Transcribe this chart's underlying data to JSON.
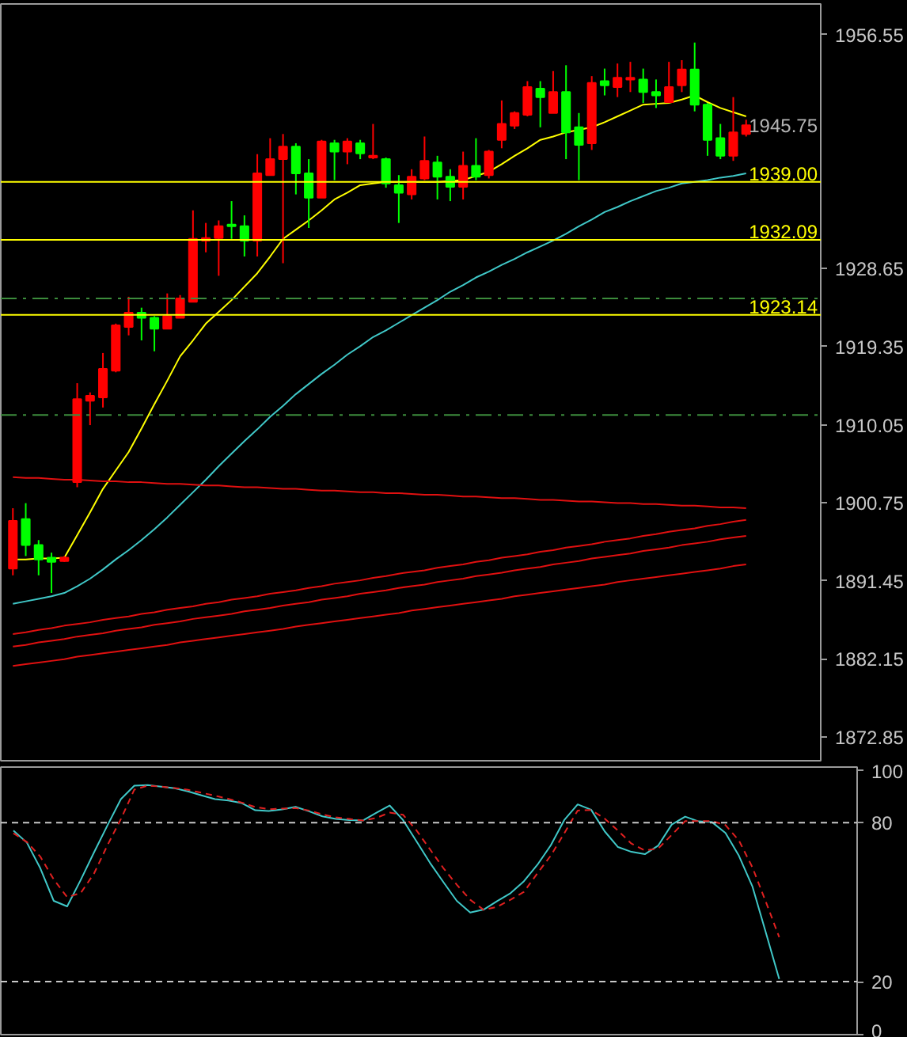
{
  "chart_data": [
    {
      "type": "candlestick",
      "categories": [
        null,
        null,
        null,
        null,
        null,
        null,
        null,
        null,
        null,
        null,
        null,
        null,
        null,
        null,
        null,
        null,
        null,
        null,
        null,
        null,
        null,
        null,
        null,
        null,
        null,
        null,
        null,
        null,
        null,
        null,
        null,
        null,
        null,
        null,
        null,
        null,
        null,
        null,
        null,
        null,
        null,
        null,
        null,
        null,
        null,
        null,
        null,
        null,
        null,
        null,
        null,
        null,
        null,
        null,
        null,
        null,
        null,
        null
      ],
      "ohlc": [
        [
          1892.9,
          1900.1,
          1892.1,
          1898.6
        ],
        [
          1898.8,
          1900.7,
          1894.4,
          1895.7
        ],
        [
          1895.7,
          1896.3,
          1892.1,
          1894.0
        ],
        [
          1894.2,
          1894.8,
          1890.0,
          1893.7
        ],
        [
          1893.8,
          1894.4,
          1893.7,
          1894.2
        ],
        [
          1903.2,
          1915.0,
          1902.6,
          1913.1
        ],
        [
          1912.9,
          1913.9,
          1910.0,
          1913.5
        ],
        [
          1913.3,
          1918.6,
          1912.1,
          1916.7
        ],
        [
          1916.5,
          1922.1,
          1916.3,
          1921.9
        ],
        [
          1921.7,
          1925.3,
          1920.7,
          1923.4
        ],
        [
          1923.4,
          1924.0,
          1920.1,
          1922.8
        ],
        [
          1922.8,
          1923.0,
          1918.8,
          1921.5
        ],
        [
          1921.5,
          1925.7,
          1921.5,
          1923.0
        ],
        [
          1922.8,
          1925.5,
          1922.8,
          1925.1
        ],
        [
          1924.7,
          1935.6,
          1924.7,
          1932.2
        ],
        [
          1932.0,
          1934.1,
          1930.6,
          1932.3
        ],
        [
          1932.3,
          1934.4,
          1927.8,
          1933.7
        ],
        [
          1933.9,
          1936.7,
          1932.2,
          1933.7
        ],
        [
          1933.7,
          1935.0,
          1930.1,
          1932.0
        ],
        [
          1932.0,
          1942.3,
          1930.1,
          1940.0
        ],
        [
          1939.8,
          1944.2,
          1939.8,
          1941.7
        ],
        [
          1941.7,
          1944.7,
          1929.3,
          1943.2
        ],
        [
          1943.2,
          1943.6,
          1937.5,
          1940.0
        ],
        [
          1940.0,
          1941.7,
          1933.5,
          1937.1
        ],
        [
          1937.1,
          1944.0,
          1937.1,
          1943.8
        ],
        [
          1943.6,
          1944.0,
          1939.2,
          1942.6
        ],
        [
          1942.6,
          1944.2,
          1941.1,
          1943.8
        ],
        [
          1943.6,
          1944.0,
          1941.7,
          1942.4
        ],
        [
          1941.9,
          1945.9,
          1941.7,
          1942.1
        ],
        [
          1941.7,
          1941.9,
          1938.3,
          1938.8
        ],
        [
          1938.6,
          1939.8,
          1934.1,
          1937.7
        ],
        [
          1937.5,
          1940.5,
          1936.9,
          1939.6
        ],
        [
          1939.4,
          1944.4,
          1939.2,
          1941.5
        ],
        [
          1941.3,
          1942.1,
          1936.9,
          1939.6
        ],
        [
          1939.6,
          1940.5,
          1936.7,
          1938.4
        ],
        [
          1938.4,
          1942.6,
          1936.9,
          1940.9
        ],
        [
          1940.9,
          1944.2,
          1939.2,
          1939.6
        ],
        [
          1939.8,
          1942.8,
          1939.4,
          1942.6
        ],
        [
          1944.0,
          1948.7,
          1943.0,
          1945.9
        ],
        [
          1945.7,
          1947.4,
          1945.3,
          1947.2
        ],
        [
          1947.0,
          1951.0,
          1946.8,
          1950.3
        ],
        [
          1950.1,
          1951.0,
          1945.5,
          1949.1
        ],
        [
          1947.2,
          1952.2,
          1947.2,
          1949.7
        ],
        [
          1949.7,
          1952.9,
          1941.7,
          1944.9
        ],
        [
          1945.5,
          1947.2,
          1939.2,
          1943.4
        ],
        [
          1943.6,
          1951.6,
          1942.8,
          1950.8
        ],
        [
          1951.0,
          1952.5,
          1949.3,
          1950.5
        ],
        [
          1950.3,
          1953.1,
          1949.1,
          1951.4
        ],
        [
          1951.2,
          1953.3,
          1949.7,
          1951.4
        ],
        [
          1951.2,
          1952.5,
          1948.4,
          1949.7
        ],
        [
          1949.7,
          1951.2,
          1947.8,
          1949.3
        ],
        [
          1948.5,
          1953.3,
          1948.4,
          1950.3
        ],
        [
          1950.5,
          1953.5,
          1949.7,
          1952.4
        ],
        [
          1952.4,
          1955.6,
          1947.4,
          1948.2
        ],
        [
          1948.2,
          1948.4,
          1942.1,
          1944.0
        ],
        [
          1944.2,
          1945.9,
          1941.7,
          1942.1
        ],
        [
          1942.1,
          1949.1,
          1941.5,
          1944.9
        ],
        [
          1944.7,
          1946.4,
          1944.4,
          1945.75
        ]
      ],
      "colors": [
        "#ff0000",
        "#00ff00",
        "#00ff00",
        "#00ff00",
        "#ff0000",
        "#ff0000",
        "#ff0000",
        "#ff0000",
        "#ff0000",
        "#ff0000",
        "#00ff00",
        "#00ff00",
        "#ff0000",
        "#ff0000",
        "#ff0000",
        "#ff0000",
        "#ff0000",
        "#00ff00",
        "#00ff00",
        "#ff0000",
        "#ff0000",
        "#ff0000",
        "#00ff00",
        "#00ff00",
        "#ff0000",
        "#00ff00",
        "#ff0000",
        "#00ff00",
        "#ff0000",
        "#00ff00",
        "#00ff00",
        "#ff0000",
        "#ff0000",
        "#00ff00",
        "#00ff00",
        "#ff0000",
        "#00ff00",
        "#ff0000",
        "#ff0000",
        "#ff0000",
        "#ff0000",
        "#00ff00",
        "#ff0000",
        "#00ff00",
        "#00ff00",
        "#ff0000",
        "#00ff00",
        "#ff0000",
        "#ff0000",
        "#00ff00",
        "#00ff00",
        "#ff0000",
        "#ff0000",
        "#00ff00",
        "#00ff00",
        "#00ff00",
        "#ff0000",
        "#ff0000"
      ],
      "series": [
        {
          "type": "line",
          "color": "#ffff00",
          "values": [
            1894.0,
            1894.0,
            1894.1,
            1894.1,
            1894.2,
            1896.9,
            1899.6,
            1902.4,
            1904.6,
            1906.8,
            1909.6,
            1912.5,
            1915.3,
            1918.2,
            1920.1,
            1922.1,
            1923.5,
            1924.9,
            1926.5,
            1928.1,
            1930.1,
            1932.2,
            1933.3,
            1934.4,
            1935.6,
            1936.9,
            1937.7,
            1938.6,
            1938.8,
            1939.0,
            1939.0,
            1939.0,
            1939.0,
            1939.0,
            1939.1,
            1939.2,
            1939.7,
            1940.2,
            1941.1,
            1942.1,
            1943.0,
            1944.0,
            1944.4,
            1944.9,
            1945.2,
            1945.5,
            1946.1,
            1946.8,
            1947.5,
            1948.2,
            1948.3,
            1948.4,
            1948.8,
            1949.3,
            1948.5,
            1947.8,
            1947.3,
            1946.8
          ]
        },
        {
          "type": "line",
          "color": "#40c8c8",
          "values": [
            1888.7,
            1889.0,
            1889.3,
            1889.6,
            1890.0,
            1890.8,
            1891.7,
            1892.8,
            1894.0,
            1895.1,
            1896.3,
            1897.6,
            1899.0,
            1900.5,
            1902.0,
            1903.5,
            1905.1,
            1906.6,
            1908.1,
            1909.5,
            1911.0,
            1912.3,
            1913.7,
            1914.9,
            1916.1,
            1917.2,
            1918.4,
            1919.4,
            1920.5,
            1921.3,
            1922.2,
            1923.1,
            1924.0,
            1924.9,
            1925.9,
            1926.7,
            1927.6,
            1928.3,
            1929.1,
            1929.8,
            1930.6,
            1931.3,
            1932.0,
            1932.8,
            1933.7,
            1934.5,
            1935.4,
            1936.0,
            1936.7,
            1937.3,
            1937.9,
            1938.3,
            1938.8,
            1939.0,
            1939.2,
            1939.5,
            1939.7,
            1940.0
          ]
        },
        {
          "type": "line",
          "color": "#e01010",
          "values": [
            1903.8,
            1903.7,
            1903.7,
            1903.6,
            1903.5,
            1903.5,
            1903.4,
            1903.3,
            1903.3,
            1903.2,
            1903.2,
            1903.1,
            1903.0,
            1903.0,
            1902.9,
            1902.8,
            1902.8,
            1902.7,
            1902.6,
            1902.6,
            1902.5,
            1902.4,
            1902.4,
            1902.3,
            1902.2,
            1902.2,
            1902.1,
            1902.0,
            1902.0,
            1901.9,
            1901.9,
            1901.8,
            1901.7,
            1901.7,
            1901.6,
            1901.5,
            1901.5,
            1901.4,
            1901.3,
            1901.3,
            1901.2,
            1901.1,
            1901.1,
            1901.0,
            1900.9,
            1900.9,
            1900.8,
            1900.7,
            1900.7,
            1900.6,
            1900.6,
            1900.5,
            1900.4,
            1900.4,
            1900.3,
            1900.2,
            1900.2,
            1900.1
          ]
        },
        {
          "type": "line",
          "color": "#e01010",
          "values": [
            1885.1,
            1885.3,
            1885.6,
            1885.8,
            1886.1,
            1886.3,
            1886.5,
            1886.8,
            1887.0,
            1887.2,
            1887.5,
            1887.7,
            1888.0,
            1888.2,
            1888.4,
            1888.7,
            1888.9,
            1889.2,
            1889.4,
            1889.6,
            1889.9,
            1890.1,
            1890.3,
            1890.6,
            1890.8,
            1891.1,
            1891.3,
            1891.5,
            1891.8,
            1892.0,
            1892.3,
            1892.5,
            1892.7,
            1893.0,
            1893.2,
            1893.4,
            1893.7,
            1893.9,
            1894.2,
            1894.4,
            1894.6,
            1894.9,
            1895.1,
            1895.4,
            1895.6,
            1895.8,
            1896.1,
            1896.3,
            1896.5,
            1896.8,
            1897.0,
            1897.3,
            1897.5,
            1897.7,
            1898.0,
            1898.2,
            1898.5,
            1898.7
          ]
        },
        {
          "type": "line",
          "color": "#e01010",
          "values": [
            1883.6,
            1883.8,
            1884.1,
            1884.3,
            1884.5,
            1884.8,
            1885.0,
            1885.2,
            1885.5,
            1885.7,
            1885.9,
            1886.2,
            1886.4,
            1886.6,
            1886.9,
            1887.1,
            1887.3,
            1887.5,
            1887.8,
            1888.0,
            1888.2,
            1888.5,
            1888.7,
            1888.9,
            1889.2,
            1889.4,
            1889.6,
            1889.9,
            1890.1,
            1890.3,
            1890.6,
            1890.8,
            1891.0,
            1891.3,
            1891.5,
            1891.7,
            1892.0,
            1892.2,
            1892.4,
            1892.7,
            1892.9,
            1893.1,
            1893.4,
            1893.6,
            1893.8,
            1894.1,
            1894.3,
            1894.5,
            1894.7,
            1895.0,
            1895.2,
            1895.4,
            1895.7,
            1895.9,
            1896.1,
            1896.4,
            1896.6,
            1896.8
          ]
        },
        {
          "type": "line",
          "color": "#e01010",
          "values": [
            1881.3,
            1881.5,
            1881.7,
            1881.9,
            1882.1,
            1882.4,
            1882.6,
            1882.8,
            1883.0,
            1883.2,
            1883.4,
            1883.6,
            1883.8,
            1884.1,
            1884.3,
            1884.5,
            1884.7,
            1884.9,
            1885.1,
            1885.3,
            1885.5,
            1885.7,
            1886.0,
            1886.2,
            1886.4,
            1886.6,
            1886.8,
            1887.0,
            1887.2,
            1887.4,
            1887.6,
            1887.9,
            1888.1,
            1888.3,
            1888.5,
            1888.7,
            1888.9,
            1889.1,
            1889.3,
            1889.6,
            1889.8,
            1890.0,
            1890.2,
            1890.4,
            1890.6,
            1890.8,
            1891.0,
            1891.3,
            1891.5,
            1891.7,
            1891.9,
            1892.1,
            1892.3,
            1892.5,
            1892.7,
            1892.9,
            1893.2,
            1893.4
          ]
        }
      ],
      "ylim": [
        1870.0,
        1960.2
      ],
      "yticks": [
        1872.85,
        1882.15,
        1891.45,
        1900.75,
        1910.05,
        1919.35,
        1928.65,
        1956.55
      ],
      "ref_lines": [
        {
          "axis": "y",
          "value": 1939.0,
          "label": "1939.00",
          "color": "#ffff00"
        },
        {
          "axis": "y",
          "value": 1932.09,
          "label": "1932.09",
          "color": "#ffff00"
        },
        {
          "axis": "y",
          "value": 1923.14,
          "label": "1923.14",
          "color": "#ffff00"
        },
        {
          "axis": "y",
          "value": 1925.1,
          "label": null,
          "color": "#3c8c3c",
          "line_style": "dashdot"
        },
        {
          "axis": "y",
          "value": 1911.2,
          "label": null,
          "color": "#3c8c3c",
          "line_style": "dashdot"
        }
      ],
      "annotations": [
        "1945.75"
      ]
    },
    {
      "type": "line",
      "categories": [
        null,
        null,
        null,
        null,
        null,
        null,
        null,
        null,
        null,
        null,
        null,
        null,
        null,
        null,
        null,
        null,
        null,
        null,
        null,
        null,
        null,
        null,
        null,
        null,
        null,
        null,
        null,
        null,
        null,
        null,
        null,
        null,
        null,
        null,
        null,
        null,
        null,
        null,
        null,
        null,
        null,
        null,
        null,
        null,
        null,
        null,
        null,
        null,
        null,
        null,
        null,
        null,
        null,
        null,
        null,
        null,
        null,
        null
      ],
      "series": [
        {
          "color": "#40c8c8",
          "values": [
            77.0,
            72.5,
            62.8,
            50.5,
            48.4,
            58.3,
            68.8,
            79.0,
            88.9,
            94.0,
            94.2,
            93.6,
            93.0,
            91.8,
            90.3,
            88.9,
            88.4,
            87.4,
            84.7,
            84.4,
            85.0,
            86.0,
            84.3,
            82.4,
            81.4,
            81.0,
            80.8,
            83.7,
            86.5,
            81.0,
            73.0,
            64.9,
            57.6,
            50.5,
            46.1,
            47.2,
            50.4,
            53.4,
            57.9,
            64.1,
            71.5,
            81.0,
            86.9,
            84.9,
            76.8,
            70.8,
            69.0,
            68.1,
            71.4,
            79.3,
            82.3,
            80.5,
            80.2,
            76.1,
            67.5,
            56.0,
            38.6,
            21.0
          ]
        },
        {
          "color": "#e02020",
          "line_style": "dashed",
          "values": [
            76.0,
            72.7,
            67.2,
            58.6,
            51.9,
            53.4,
            60.8,
            71.5,
            81.4,
            92.5,
            94.0,
            93.6,
            93.1,
            92.4,
            91.3,
            90.2,
            89.0,
            87.6,
            85.9,
            85.1,
            85.3,
            85.5,
            84.6,
            83.1,
            82.0,
            81.4,
            80.8,
            81.8,
            83.8,
            83.0,
            77.1,
            70.0,
            62.9,
            56.6,
            50.9,
            47.1,
            48.2,
            50.9,
            53.9,
            60.9,
            67.6,
            76.0,
            84.6,
            84.8,
            81.6,
            77.0,
            72.1,
            69.5,
            70.3,
            75.4,
            80.6,
            80.6,
            80.6,
            79.1,
            73.3,
            63.2,
            50.2,
            36.8
          ]
        }
      ],
      "ylim": [
        0,
        101
      ],
      "yticks": [
        0,
        20,
        80,
        100
      ],
      "ref_lines": [
        {
          "axis": "y",
          "value": 80,
          "label": null,
          "color": "#c8c8c8",
          "line_style": "dashed"
        },
        {
          "axis": "y",
          "value": 20,
          "label": null,
          "color": "#c8c8c8",
          "line_style": "dashed"
        }
      ]
    }
  ]
}
